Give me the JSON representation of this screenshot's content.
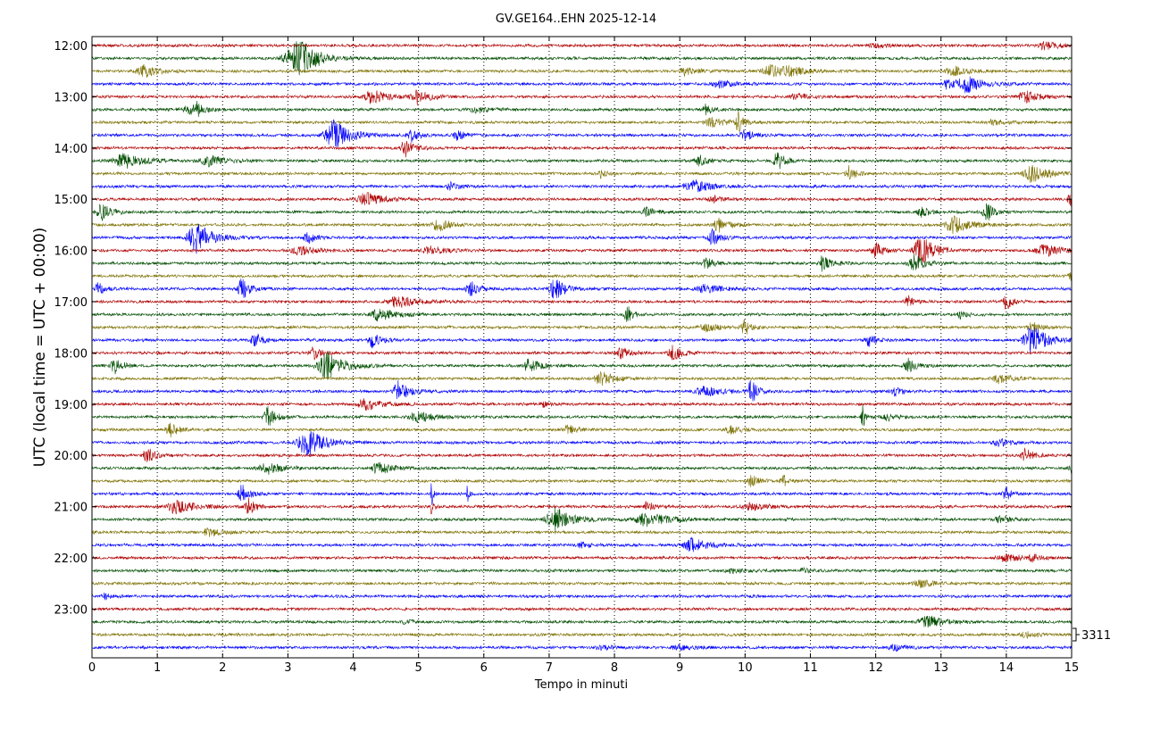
{
  "chart_data": {
    "type": "line",
    "title": "GV.GE164..EHN 2025-12-14",
    "xlabel": "Tempo in minuti",
    "ylabel": "UTC (local time = UTC + 00:00)",
    "xlim": [
      0,
      15
    ],
    "x_ticks": [
      "0",
      "1",
      "2",
      "3",
      "4",
      "5",
      "6",
      "7",
      "8",
      "9",
      "10",
      "11",
      "12",
      "13",
      "14",
      "15"
    ],
    "y_tick_labels": [
      "12:00",
      "13:00",
      "14:00",
      "15:00",
      "16:00",
      "17:00",
      "18:00",
      "19:00",
      "20:00",
      "21:00",
      "22:00",
      "23:00"
    ],
    "scale_label": "3311",
    "grid": "vertical dotted at each minute",
    "trace_colors": [
      "#b00000",
      "#004d00",
      "#7d7000",
      "#0000ff"
    ],
    "traces": [
      {
        "start": "12:00",
        "events": [
          [
            12.0,
            0.25,
            0.15
          ],
          [
            14.6,
            0.25,
            0.25
          ]
        ]
      },
      {
        "start": "12:15",
        "events": [
          [
            3.1,
            0.35,
            1.0
          ],
          [
            3.25,
            0.25,
            0.5
          ]
        ]
      },
      {
        "start": "12:30",
        "events": [
          [
            0.8,
            0.25,
            0.45
          ],
          [
            9.1,
            0.2,
            0.3
          ],
          [
            10.4,
            0.3,
            0.4
          ],
          [
            10.7,
            0.2,
            0.3
          ],
          [
            13.2,
            0.25,
            0.3
          ]
        ]
      },
      {
        "start": "12:45",
        "events": [
          [
            9.6,
            0.25,
            0.3
          ],
          [
            13.4,
            0.3,
            0.55
          ],
          [
            13.1,
            0.2,
            0.3
          ]
        ]
      },
      {
        "start": "13:00",
        "events": [
          [
            4.3,
            0.3,
            0.45
          ],
          [
            5.0,
            0.2,
            0.5
          ],
          [
            10.8,
            0.25,
            0.2
          ],
          [
            14.3,
            0.25,
            0.4
          ]
        ]
      },
      {
        "start": "13:15",
        "events": [
          [
            1.5,
            0.3,
            0.3
          ],
          [
            1.6,
            0.05,
            0.6
          ],
          [
            5.9,
            0.25,
            0.2
          ],
          [
            9.4,
            0.15,
            0.3
          ]
        ]
      },
      {
        "start": "13:30",
        "events": [
          [
            9.5,
            0.25,
            0.3
          ],
          [
            9.9,
            0.1,
            0.6
          ],
          [
            13.8,
            0.2,
            0.2
          ]
        ]
      },
      {
        "start": "13:45",
        "events": [
          [
            3.7,
            0.3,
            1.0
          ],
          [
            4.9,
            0.15,
            0.45
          ],
          [
            5.6,
            0.15,
            0.35
          ],
          [
            10.0,
            0.15,
            0.4
          ]
        ]
      },
      {
        "start": "14:00",
        "events": [
          [
            4.8,
            0.15,
            0.6
          ]
        ]
      },
      {
        "start": "14:15",
        "events": [
          [
            0.5,
            0.35,
            0.5
          ],
          [
            1.8,
            0.3,
            0.35
          ],
          [
            9.3,
            0.15,
            0.35
          ],
          [
            10.5,
            0.15,
            0.6
          ]
        ]
      },
      {
        "start": "14:30",
        "events": [
          [
            7.8,
            0.08,
            0.3
          ],
          [
            11.6,
            0.12,
            0.55
          ],
          [
            14.4,
            0.3,
            0.55
          ]
        ]
      },
      {
        "start": "14:45",
        "events": [
          [
            5.5,
            0.15,
            0.25
          ],
          [
            9.2,
            0.3,
            0.45
          ]
        ]
      },
      {
        "start": "15:00",
        "events": [
          [
            4.2,
            0.3,
            0.45
          ],
          [
            9.5,
            0.15,
            0.3
          ],
          [
            15.0,
            0.15,
            0.4
          ]
        ]
      },
      {
        "start": "15:15",
        "events": [
          [
            0.15,
            0.2,
            0.5
          ],
          [
            8.5,
            0.15,
            0.35
          ],
          [
            12.7,
            0.12,
            0.45
          ],
          [
            13.7,
            0.12,
            0.7
          ]
        ]
      },
      {
        "start": "15:30",
        "events": [
          [
            5.3,
            0.25,
            0.4
          ],
          [
            9.6,
            0.2,
            0.45
          ],
          [
            13.2,
            0.3,
            0.55
          ]
        ]
      },
      {
        "start": "15:45",
        "events": [
          [
            1.6,
            0.3,
            1.0
          ],
          [
            3.3,
            0.12,
            0.45
          ],
          [
            9.5,
            0.15,
            0.6
          ]
        ]
      },
      {
        "start": "16:00",
        "events": [
          [
            3.2,
            0.3,
            0.3
          ],
          [
            5.2,
            0.3,
            0.25
          ],
          [
            12.7,
            0.25,
            1.0
          ],
          [
            12.0,
            0.15,
            0.5
          ],
          [
            14.6,
            0.3,
            0.4
          ]
        ]
      },
      {
        "start": "16:15",
        "events": [
          [
            9.4,
            0.12,
            0.5
          ],
          [
            11.2,
            0.15,
            0.6
          ],
          [
            12.6,
            0.2,
            0.55
          ]
        ]
      },
      {
        "start": "16:30",
        "events": [
          [
            15.0,
            0.12,
            0.35
          ]
        ]
      },
      {
        "start": "16:45",
        "events": [
          [
            0.1,
            0.15,
            0.4
          ],
          [
            2.3,
            0.15,
            0.7
          ],
          [
            5.8,
            0.15,
            0.55
          ],
          [
            7.1,
            0.2,
            0.7
          ],
          [
            9.4,
            0.3,
            0.3
          ]
        ]
      },
      {
        "start": "17:00",
        "events": [
          [
            4.7,
            0.3,
            0.45
          ],
          [
            12.5,
            0.12,
            0.35
          ],
          [
            14.0,
            0.12,
            0.6
          ]
        ]
      },
      {
        "start": "17:15",
        "events": [
          [
            4.4,
            0.3,
            0.4
          ],
          [
            8.2,
            0.1,
            0.6
          ],
          [
            13.3,
            0.12,
            0.25
          ]
        ]
      },
      {
        "start": "17:30",
        "events": [
          [
            9.4,
            0.25,
            0.3
          ],
          [
            10.0,
            0.12,
            0.55
          ],
          [
            14.4,
            0.15,
            0.35
          ]
        ]
      },
      {
        "start": "17:45",
        "events": [
          [
            2.5,
            0.15,
            0.45
          ],
          [
            4.3,
            0.15,
            0.5
          ],
          [
            11.9,
            0.12,
            0.45
          ],
          [
            14.4,
            0.3,
            0.9
          ]
        ]
      },
      {
        "start": "18:00",
        "events": [
          [
            3.4,
            0.15,
            0.4
          ],
          [
            8.1,
            0.15,
            0.45
          ],
          [
            8.9,
            0.15,
            0.55
          ]
        ]
      },
      {
        "start": "18:15",
        "events": [
          [
            0.35,
            0.12,
            0.6
          ],
          [
            3.6,
            0.3,
            1.0
          ],
          [
            6.7,
            0.2,
            0.45
          ],
          [
            12.5,
            0.15,
            0.45
          ]
        ]
      },
      {
        "start": "18:30",
        "events": [
          [
            7.8,
            0.25,
            0.45
          ],
          [
            13.9,
            0.25,
            0.3
          ]
        ]
      },
      {
        "start": "18:45",
        "events": [
          [
            4.7,
            0.2,
            0.65
          ],
          [
            9.4,
            0.3,
            0.35
          ],
          [
            10.1,
            0.12,
            0.8
          ],
          [
            12.3,
            0.15,
            0.3
          ]
        ]
      },
      {
        "start": "19:00",
        "events": [
          [
            4.2,
            0.3,
            0.4
          ],
          [
            6.9,
            0.1,
            0.2
          ]
        ]
      },
      {
        "start": "19:15",
        "events": [
          [
            2.7,
            0.15,
            0.7
          ],
          [
            5.0,
            0.3,
            0.35
          ],
          [
            11.8,
            0.05,
            1.0
          ],
          [
            12.2,
            0.2,
            0.2
          ]
        ]
      },
      {
        "start": "19:30",
        "events": [
          [
            1.2,
            0.15,
            0.45
          ],
          [
            7.3,
            0.2,
            0.3
          ],
          [
            9.8,
            0.2,
            0.25
          ]
        ]
      },
      {
        "start": "19:45",
        "events": [
          [
            3.3,
            0.3,
            1.0
          ],
          [
            13.9,
            0.2,
            0.25
          ]
        ]
      },
      {
        "start": "20:00",
        "events": [
          [
            0.85,
            0.15,
            0.55
          ],
          [
            14.3,
            0.15,
            0.45
          ]
        ]
      },
      {
        "start": "20:15",
        "events": [
          [
            2.7,
            0.3,
            0.4
          ],
          [
            4.4,
            0.25,
            0.45
          ],
          [
            15.0,
            0.1,
            0.3
          ]
        ]
      },
      {
        "start": "20:30",
        "events": [
          [
            10.1,
            0.12,
            0.45
          ],
          [
            10.6,
            0.12,
            0.35
          ]
        ]
      },
      {
        "start": "20:45",
        "events": [
          [
            2.3,
            0.15,
            0.55
          ],
          [
            5.2,
            0.03,
            1.0
          ],
          [
            5.75,
            0.03,
            0.6
          ],
          [
            14.0,
            0.12,
            0.45
          ]
        ]
      },
      {
        "start": "21:00",
        "events": [
          [
            1.3,
            0.3,
            0.5
          ],
          [
            2.4,
            0.12,
            0.6
          ],
          [
            5.2,
            0.05,
            0.5
          ],
          [
            8.5,
            0.1,
            0.35
          ],
          [
            10.1,
            0.3,
            0.25
          ]
        ]
      },
      {
        "start": "21:15",
        "events": [
          [
            7.1,
            0.3,
            0.8
          ],
          [
            8.5,
            0.4,
            0.45
          ],
          [
            13.9,
            0.2,
            0.2
          ]
        ]
      },
      {
        "start": "21:30",
        "events": [
          [
            1.8,
            0.2,
            0.3
          ]
        ]
      },
      {
        "start": "21:45",
        "events": [
          [
            9.2,
            0.3,
            0.45
          ],
          [
            7.5,
            0.15,
            0.2
          ]
        ]
      },
      {
        "start": "22:00",
        "events": [
          [
            14.0,
            0.3,
            0.25
          ],
          [
            14.4,
            0.12,
            0.3
          ]
        ]
      },
      {
        "start": "22:15",
        "events": [
          [
            9.8,
            0.2,
            0.15
          ],
          [
            10.9,
            0.1,
            0.2
          ]
        ]
      },
      {
        "start": "22:30",
        "events": [
          [
            12.7,
            0.25,
            0.25
          ]
        ]
      },
      {
        "start": "22:45",
        "events": [
          [
            0.2,
            0.1,
            0.2
          ]
        ]
      },
      {
        "start": "23:00",
        "events": []
      },
      {
        "start": "23:15",
        "events": [
          [
            12.8,
            0.3,
            0.4
          ],
          [
            4.8,
            0.1,
            0.2
          ]
        ]
      },
      {
        "start": "23:30",
        "events": [
          [
            14.3,
            0.2,
            0.2
          ]
        ]
      },
      {
        "start": "23:45",
        "events": [
          [
            7.8,
            0.2,
            0.15
          ],
          [
            9.0,
            0.25,
            0.15
          ],
          [
            12.3,
            0.2,
            0.2
          ]
        ]
      }
    ]
  }
}
